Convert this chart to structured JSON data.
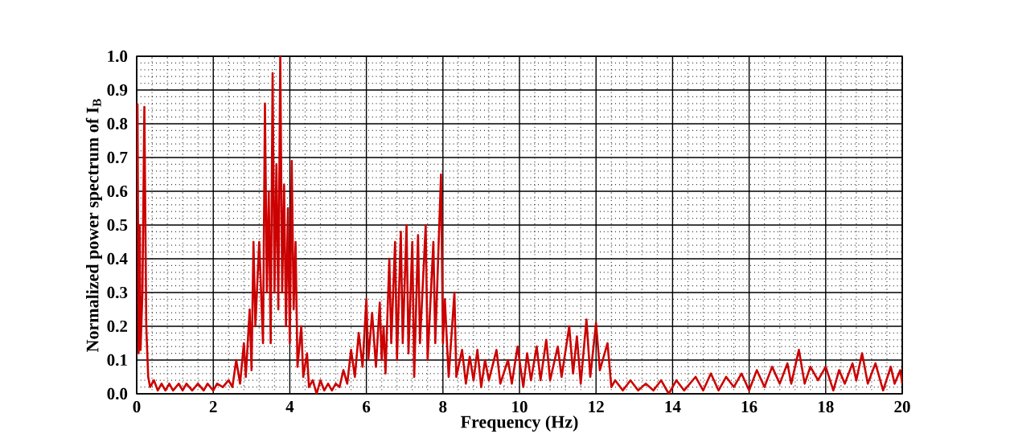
{
  "chart_data": {
    "type": "line",
    "xlabel": "Frequency (Hz)",
    "ylabel": "Normalized power spectrum of I$_{B}$",
    "xlim": [
      0,
      20
    ],
    "ylim": [
      0,
      1.0
    ],
    "xticks": [
      0,
      2,
      4,
      6,
      8,
      10,
      12,
      14,
      16,
      18,
      20
    ],
    "yticks": [
      {
        "value": 0,
        "label": "0.0"
      },
      0.1,
      0.2,
      0.3,
      0.4,
      0.5,
      0.6,
      0.7,
      0.8,
      0.9,
      {
        "value": 1.0,
        "label": "1.0"
      }
    ],
    "grid": true,
    "line_style": "solid",
    "marker": "none",
    "x": [
      0.02,
      0.05,
      0.08,
      0.1,
      0.15,
      0.2,
      0.25,
      0.3,
      0.35,
      0.45,
      0.55,
      0.65,
      0.75,
      0.85,
      0.95,
      1.1,
      1.2,
      1.3,
      1.45,
      1.6,
      1.75,
      1.85,
      2.0,
      2.1,
      2.25,
      2.4,
      2.5,
      2.6,
      2.7,
      2.8,
      2.85,
      2.95,
      3.0,
      3.05,
      3.1,
      3.2,
      3.3,
      3.35,
      3.4,
      3.45,
      3.5,
      3.55,
      3.6,
      3.65,
      3.7,
      3.75,
      3.8,
      3.85,
      3.9,
      3.95,
      4.0,
      4.05,
      4.1,
      4.15,
      4.2,
      4.3,
      4.35,
      4.45,
      4.5,
      4.6,
      4.7,
      4.8,
      4.9,
      5.0,
      5.1,
      5.2,
      5.3,
      5.4,
      5.5,
      5.6,
      5.7,
      5.8,
      5.9,
      6.0,
      6.05,
      6.15,
      6.25,
      6.35,
      6.4,
      6.45,
      6.5,
      6.6,
      6.65,
      6.75,
      6.8,
      6.9,
      6.95,
      7.05,
      7.1,
      7.2,
      7.25,
      7.35,
      7.4,
      7.55,
      7.6,
      7.75,
      7.8,
      7.95,
      8.0,
      8.05,
      8.15,
      8.3,
      8.35,
      8.5,
      8.6,
      8.7,
      8.8,
      8.9,
      9.0,
      9.1,
      9.2,
      9.4,
      9.5,
      9.7,
      9.8,
      9.95,
      10.1,
      10.2,
      10.3,
      10.45,
      10.55,
      10.7,
      10.8,
      11.0,
      11.1,
      11.3,
      11.4,
      11.5,
      11.6,
      11.75,
      11.85,
      12.0,
      12.1,
      12.3,
      12.4,
      12.5,
      12.7,
      12.9,
      13.1,
      13.3,
      13.5,
      13.7,
      13.9,
      14.1,
      14.3,
      14.6,
      14.8,
      15.0,
      15.2,
      15.4,
      15.6,
      15.8,
      16.0,
      16.2,
      16.4,
      16.6,
      16.8,
      17.0,
      17.1,
      17.3,
      17.45,
      17.6,
      17.8,
      18.0,
      18.2,
      18.35,
      18.5,
      18.7,
      18.8,
      18.95,
      19.1,
      19.3,
      19.5,
      19.7,
      19.8,
      19.95,
      20.0
    ],
    "series": [
      {
        "color": "#cc0000",
        "values": [
          0.86,
          0.12,
          0.5,
          0.13,
          0.3,
          0.85,
          0.2,
          0.05,
          0.02,
          0.04,
          0.01,
          0.03,
          0.01,
          0.03,
          0.01,
          0.03,
          0.01,
          0.03,
          0.01,
          0.03,
          0.01,
          0.03,
          0.01,
          0.03,
          0.02,
          0.04,
          0.02,
          0.1,
          0.03,
          0.15,
          0.05,
          0.25,
          0.07,
          0.45,
          0.2,
          0.45,
          0.15,
          0.86,
          0.3,
          0.6,
          0.15,
          0.95,
          0.3,
          0.68,
          0.25,
          1.0,
          0.3,
          0.62,
          0.2,
          0.55,
          0.15,
          0.69,
          0.25,
          0.45,
          0.08,
          0.2,
          0.05,
          0.12,
          0.02,
          0.04,
          0.0,
          0.04,
          0.01,
          0.03,
          0.01,
          0.03,
          0.02,
          0.07,
          0.03,
          0.13,
          0.05,
          0.18,
          0.08,
          0.28,
          0.1,
          0.24,
          0.08,
          0.27,
          0.1,
          0.2,
          0.06,
          0.4,
          0.15,
          0.45,
          0.1,
          0.48,
          0.15,
          0.5,
          0.12,
          0.45,
          0.05,
          0.47,
          0.15,
          0.5,
          0.1,
          0.45,
          0.15,
          0.65,
          0.15,
          0.28,
          0.05,
          0.3,
          0.05,
          0.13,
          0.03,
          0.11,
          0.04,
          0.13,
          0.02,
          0.1,
          0.04,
          0.13,
          0.03,
          0.1,
          0.03,
          0.14,
          0.02,
          0.12,
          0.04,
          0.14,
          0.04,
          0.16,
          0.04,
          0.14,
          0.05,
          0.2,
          0.06,
          0.17,
          0.03,
          0.22,
          0.05,
          0.21,
          0.07,
          0.15,
          0.02,
          0.04,
          0.01,
          0.04,
          0.01,
          0.03,
          0.01,
          0.04,
          0.0,
          0.04,
          0.01,
          0.05,
          0.01,
          0.06,
          0.01,
          0.05,
          0.02,
          0.06,
          0.01,
          0.07,
          0.02,
          0.08,
          0.03,
          0.09,
          0.03,
          0.13,
          0.03,
          0.08,
          0.04,
          0.08,
          0.01,
          0.07,
          0.03,
          0.09,
          0.04,
          0.12,
          0.03,
          0.09,
          0.01,
          0.08,
          0.03,
          0.07,
          0.03
        ]
      }
    ]
  }
}
